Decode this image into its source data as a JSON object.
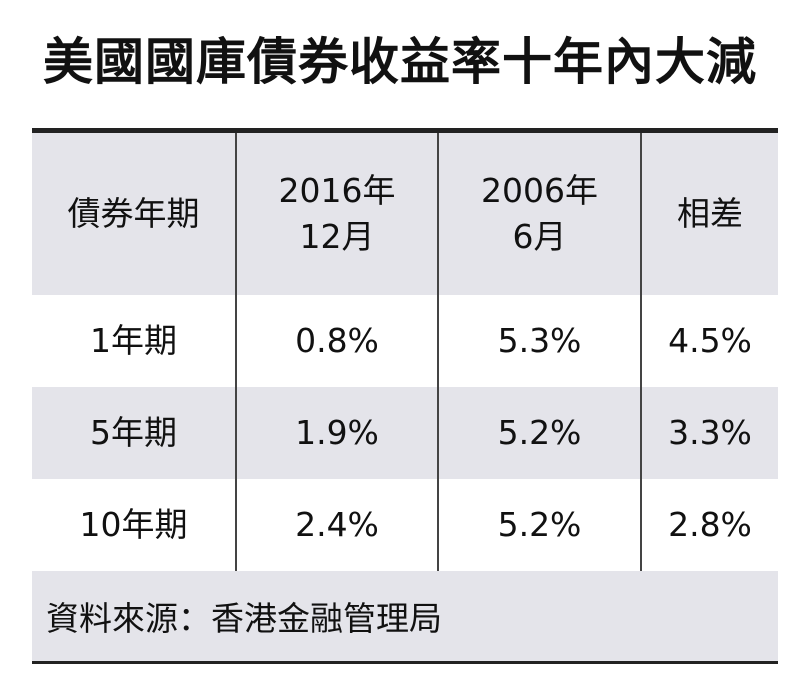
{
  "title": "美國國庫債券收益率十年內大減",
  "table": {
    "header": [
      "債券年期",
      [
        "2016年",
        "12月"
      ],
      [
        "2006年",
        "6月"
      ],
      "相差"
    ],
    "rows": [
      [
        "1年期",
        "0.8%",
        "5.3%",
        "4.5%"
      ],
      [
        "5年期",
        "1.9%",
        "5.2%",
        "3.3%"
      ],
      [
        "10年期",
        "2.4%",
        "5.2%",
        "2.8%"
      ]
    ]
  },
  "footer": "資料來源：香港金融管理局"
}
